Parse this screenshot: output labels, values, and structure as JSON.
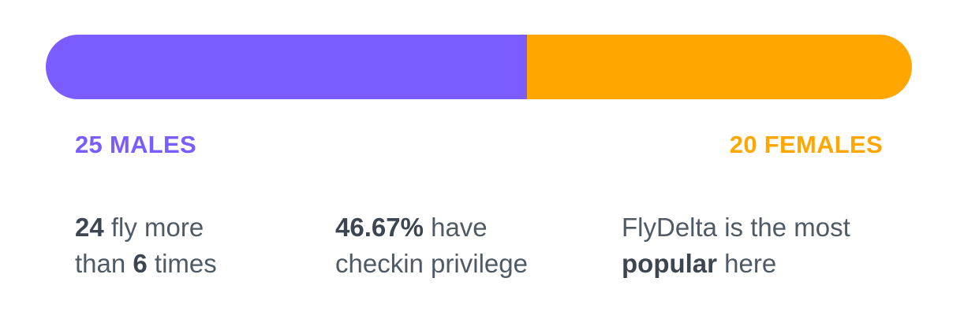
{
  "chart_data": {
    "type": "bar",
    "categories": [
      "MALES",
      "FEMALES"
    ],
    "values": [
      25,
      20
    ],
    "labels": [
      "25 MALES",
      "20 FEMALES"
    ],
    "colors": [
      "#7b5cff",
      "#ffa600"
    ]
  },
  "stats": [
    {
      "line1": [
        "24",
        " fly more"
      ],
      "line2": [
        "than ",
        "6",
        " times"
      ]
    },
    {
      "line1": [
        "46.67%",
        " have"
      ],
      "line2": [
        "checkin privilege"
      ]
    },
    {
      "line1": [
        "FlyDelta is the most"
      ],
      "line2": [
        "popular",
        " here"
      ]
    }
  ]
}
